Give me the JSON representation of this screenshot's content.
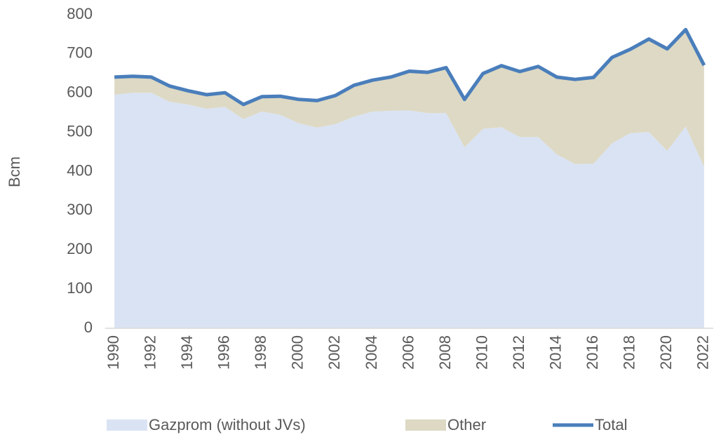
{
  "chart_data": {
    "type": "stacked_area_line",
    "y_label": "Bcm",
    "categories": [
      "1990",
      null,
      "1992",
      null,
      "1994",
      null,
      "1996",
      null,
      "1998",
      null,
      "2000",
      null,
      "2002",
      null,
      "2004",
      null,
      "2006",
      null,
      "2008",
      null,
      "2010",
      null,
      "2012",
      null,
      "2014",
      null,
      "2016",
      null,
      "2018",
      null,
      "2020",
      null,
      "2022"
    ],
    "series": [
      {
        "name": "Gazprom (without JVs)",
        "color": "#dae3f3",
        "kind": "area",
        "values": [
          596,
          601,
          601,
          578,
          571,
          560,
          565,
          534,
          553,
          545,
          523,
          512,
          521,
          540,
          553,
          555,
          556,
          549,
          549,
          462,
          509,
          513,
          488,
          488,
          444,
          419,
          420,
          472,
          498,
          501,
          453,
          515,
          412
        ]
      },
      {
        "name": "Other",
        "color": "#ddd9c4",
        "kind": "area",
        "values": [
          45,
          42,
          40,
          40,
          35,
          36,
          36,
          37,
          38,
          47,
          61,
          69,
          73,
          80,
          80,
          86,
          100,
          104,
          116,
          122,
          141,
          157,
          167,
          180,
          197,
          216,
          220,
          219,
          214,
          237,
          260,
          247,
          259
        ]
      },
      {
        "name": "Total",
        "color": "#4a7ebb",
        "kind": "line",
        "values": [
          641,
          643,
          641,
          618,
          606,
          596,
          601,
          571,
          591,
          592,
          584,
          581,
          594,
          620,
          633,
          641,
          656,
          653,
          665,
          584,
          650,
          670,
          655,
          668,
          641,
          635,
          640,
          691,
          712,
          738,
          713,
          762,
          671
        ]
      }
    ],
    "ylim": [
      0,
      800
    ],
    "yticks": [
      0,
      100,
      200,
      300,
      400,
      500,
      600,
      700,
      800
    ],
    "legend": "bottom"
  }
}
